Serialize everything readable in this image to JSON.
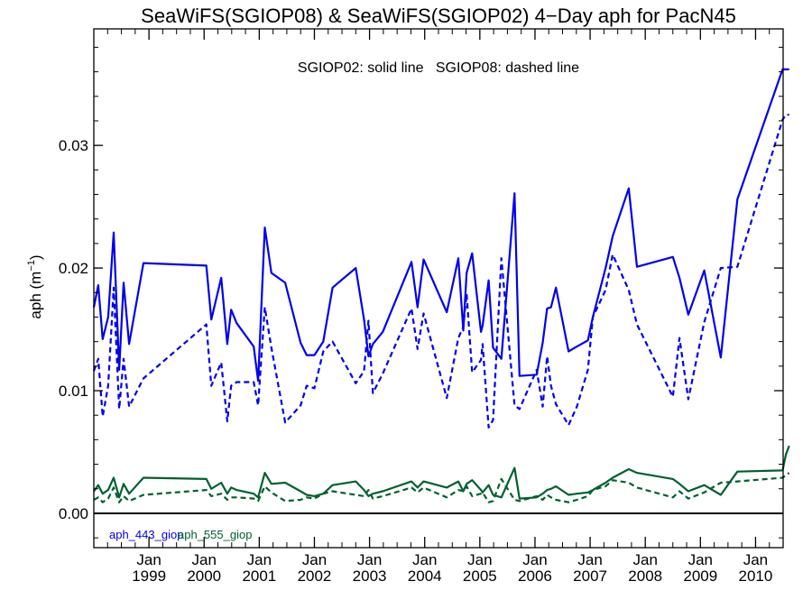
{
  "chart_data": {
    "type": "line",
    "title": "SeaWiFS(SGIOP08) & SeaWiFS(SGIOP02) 4−Day aph for PacN45",
    "annotation": "SGIOP02: solid line   SGIOP08: dashed line",
    "ylabel": "aph (m",
    "ylabel_sup": "−1",
    "ylabel_close": ")",
    "xlim": [
      1998.0,
      2010.5
    ],
    "ylim": [
      -0.0028,
      0.0395
    ],
    "yticks": [
      0.0,
      0.01,
      0.02,
      0.03
    ],
    "ytick_labels": [
      "0.00",
      "0.01",
      "0.02",
      "0.03"
    ],
    "xticks": [
      1999.0,
      2000.0,
      2001.0,
      2002.0,
      2003.0,
      2004.0,
      2005.0,
      2006.0,
      2007.0,
      2008.0,
      2009.0,
      2010.0
    ],
    "xtick_month": "Jan",
    "xtick_years": [
      "1999",
      "2000",
      "2001",
      "2002",
      "2003",
      "2004",
      "2005",
      "2006",
      "2007",
      "2008",
      "2009",
      "2010"
    ],
    "legend": [
      {
        "name": "aph_443_giop",
        "color": "#0000ee"
      },
      {
        "name": "aph_555_giop",
        "color": "#006030"
      }
    ],
    "x": [
      1998.0,
      1998.08,
      1998.16,
      1998.26,
      1998.36,
      1998.46,
      1998.54,
      1998.64,
      1998.9,
      2000.04,
      2000.13,
      2000.31,
      2000.42,
      2000.49,
      2000.59,
      2000.9,
      2000.98,
      2001.1,
      2001.22,
      2001.47,
      2001.75,
      2001.86,
      2002.0,
      2002.16,
      2002.33,
      2002.75,
      2002.9,
      2002.98,
      2003.06,
      2003.24,
      2003.76,
      2003.87,
      2003.98,
      2004.4,
      2004.61,
      2004.7,
      2004.76,
      2004.86,
      2005.02,
      2005.05,
      2005.16,
      2005.24,
      2005.39,
      2005.63,
      2005.72,
      2006.03,
      2006.14,
      2006.22,
      2006.29,
      2006.38,
      2006.61,
      2006.76,
      2006.96,
      2007.05,
      2007.28,
      2007.41,
      2007.7,
      2007.85,
      2008.5,
      2008.62,
      2008.78,
      2009.07,
      2009.37,
      2009.67,
      2010.49,
      2010.55,
      2010.61
    ],
    "series": [
      {
        "name": "aph_443_giop",
        "style": "solid",
        "color": "#0000ee",
        "values": [
          0.0168,
          0.0186,
          0.0142,
          0.016,
          0.0229,
          0.0117,
          0.0188,
          0.0138,
          0.0204,
          0.0202,
          0.0158,
          0.0192,
          0.0138,
          0.0166,
          0.0155,
          0.0136,
          0.0108,
          0.0233,
          0.0196,
          0.0188,
          0.0139,
          0.0129,
          0.0129,
          0.014,
          0.0184,
          0.02,
          0.0158,
          0.0128,
          0.0138,
          0.0148,
          0.0205,
          0.0168,
          0.0207,
          0.0164,
          0.0208,
          0.0149,
          0.0196,
          0.0212,
          0.0148,
          0.0153,
          0.019,
          0.0135,
          0.0126,
          0.0261,
          0.0112,
          0.0113,
          0.0139,
          0.0167,
          0.0168,
          0.0184,
          0.0132,
          0.0136,
          0.0141,
          0.016,
          0.02,
          0.0226,
          0.0265,
          0.0201,
          0.0209,
          0.0192,
          0.0162,
          0.0198,
          0.0127,
          0.0256,
          0.0362,
          0.0362,
          0.0362
        ]
      },
      {
        "name": "aph_443_giop",
        "style": "dashed",
        "color": "#0000ee",
        "values": [
          0.0116,
          0.0126,
          0.0079,
          0.0104,
          0.0184,
          0.0085,
          0.0126,
          0.0087,
          0.011,
          0.0154,
          0.0104,
          0.0123,
          0.0075,
          0.0104,
          0.0107,
          0.0107,
          0.0088,
          0.0168,
          0.0135,
          0.0074,
          0.0088,
          0.0104,
          0.0102,
          0.0132,
          0.014,
          0.0106,
          0.0116,
          0.0157,
          0.0098,
          0.0114,
          0.0167,
          0.0134,
          0.0163,
          0.0094,
          0.0143,
          0.0152,
          0.0179,
          0.0115,
          0.0125,
          0.0138,
          0.007,
          0.0076,
          0.0208,
          0.0088,
          0.0085,
          0.0117,
          0.0087,
          0.0128,
          0.0104,
          0.0089,
          0.0072,
          0.0087,
          0.0117,
          0.016,
          0.0182,
          0.0211,
          0.0182,
          0.0154,
          0.0095,
          0.0143,
          0.0093,
          0.0156,
          0.02,
          0.0201,
          0.0321,
          0.0325,
          0.0325
        ]
      },
      {
        "name": "aph_555_giop",
        "style": "solid",
        "color": "#006030",
        "values": [
          0.0018,
          0.0023,
          0.0016,
          0.0019,
          0.0029,
          0.0013,
          0.0024,
          0.0016,
          0.0029,
          0.0028,
          0.002,
          0.0025,
          0.0016,
          0.0021,
          0.0019,
          0.0016,
          0.0013,
          0.0033,
          0.0024,
          0.0025,
          0.0018,
          0.0015,
          0.0014,
          0.0016,
          0.0023,
          0.0026,
          0.0019,
          0.0014,
          0.0016,
          0.0018,
          0.0026,
          0.0021,
          0.0026,
          0.0021,
          0.0026,
          0.0018,
          0.0024,
          0.0027,
          0.0019,
          0.0017,
          0.0023,
          0.0015,
          0.0013,
          0.0037,
          0.0012,
          0.0013,
          0.0016,
          0.0019,
          0.002,
          0.0022,
          0.0015,
          0.0016,
          0.0017,
          0.0019,
          0.0025,
          0.0029,
          0.0036,
          0.0033,
          0.0028,
          0.0024,
          0.0018,
          0.0023,
          0.0015,
          0.0034,
          0.0035,
          0.0048,
          0.0055
        ]
      },
      {
        "name": "aph_555_giop",
        "style": "dashed",
        "color": "#006030",
        "values": [
          0.0011,
          0.0013,
          0.0009,
          0.0012,
          0.0021,
          0.0009,
          0.0014,
          0.001,
          0.0015,
          0.0019,
          0.0014,
          0.0016,
          0.0011,
          0.0013,
          0.0013,
          0.0012,
          0.001,
          0.0022,
          0.0017,
          0.001,
          0.0011,
          0.0013,
          0.0012,
          0.0016,
          0.0018,
          0.0015,
          0.0014,
          0.0019,
          0.0012,
          0.0014,
          0.0021,
          0.0017,
          0.0021,
          0.0013,
          0.0019,
          0.0018,
          0.0022,
          0.0014,
          0.0016,
          0.0017,
          0.0009,
          0.001,
          0.0028,
          0.0011,
          0.001,
          0.0014,
          0.0011,
          0.0015,
          0.0013,
          0.0011,
          0.0009,
          0.0011,
          0.0014,
          0.0019,
          0.0022,
          0.0027,
          0.0025,
          0.0021,
          0.0013,
          0.0018,
          0.0012,
          0.0017,
          0.0025,
          0.0026,
          0.0029,
          0.0031,
          0.0033
        ]
      }
    ]
  }
}
